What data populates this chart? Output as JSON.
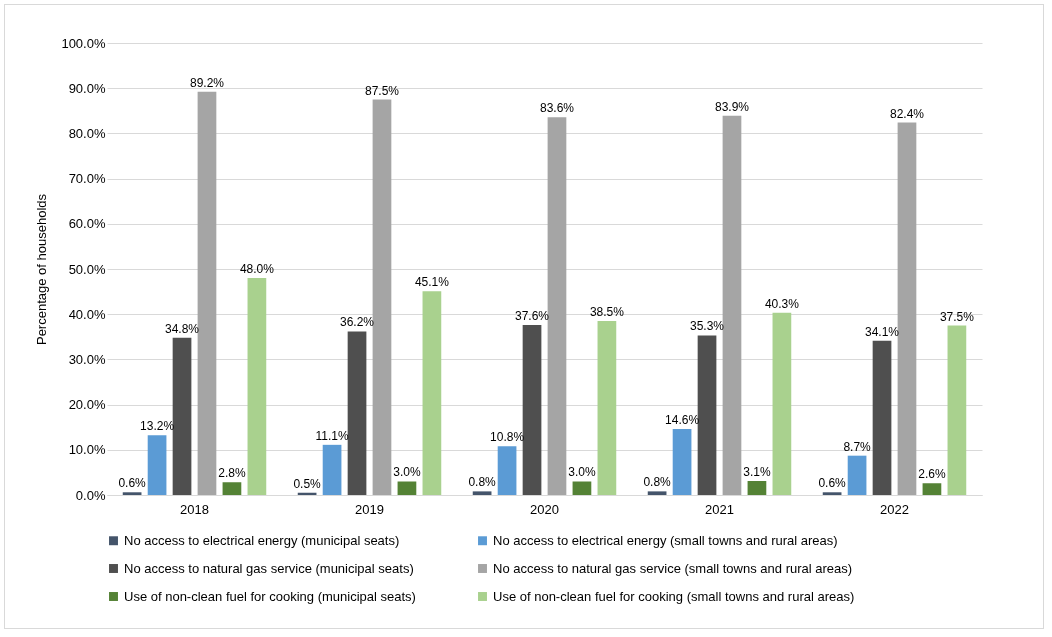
{
  "chart_data": {
    "type": "bar",
    "ylabel": "Percentage of households",
    "categories": [
      "2018",
      "2019",
      "2020",
      "2021",
      "2022"
    ],
    "ylim": [
      0,
      100
    ],
    "yticks": [
      {
        "value": 0,
        "label": "0.0%"
      },
      {
        "value": 10,
        "label": "10.0%"
      },
      {
        "value": 20,
        "label": "20.0%"
      },
      {
        "value": 30,
        "label": "30.0%"
      },
      {
        "value": 40,
        "label": "40.0%"
      },
      {
        "value": 50,
        "label": "50.0%"
      },
      {
        "value": 60,
        "label": "60.0%"
      },
      {
        "value": 70,
        "label": "70.0%"
      },
      {
        "value": 80,
        "label": "80.0%"
      },
      {
        "value": 90,
        "label": "90.0%"
      },
      {
        "value": 100,
        "label": "100.0%"
      }
    ],
    "grid": "y",
    "legend": "bottom",
    "series": [
      {
        "name": "No access to electrical energy (municipal seats)",
        "color": "#44546a",
        "values": [
          0.6,
          0.5,
          0.8,
          0.8,
          0.6
        ],
        "value_labels": [
          "0.6%",
          "0.5%",
          "0.8%",
          "0.8%",
          "0.6%"
        ]
      },
      {
        "name": "No access to electrical energy (small towns and rural areas)",
        "color": "#5b9bd5",
        "values": [
          13.2,
          11.1,
          10.8,
          14.6,
          8.7
        ],
        "value_labels": [
          "13.2%",
          "11.1%",
          "10.8%",
          "14.6%",
          "8.7%"
        ]
      },
      {
        "name": "No access to natural gas service (municipal seats)",
        "color": "#4f4f4f",
        "values": [
          34.8,
          36.2,
          37.6,
          35.3,
          34.1
        ],
        "value_labels": [
          "34.8%",
          "36.2%",
          "37.6%",
          "35.3%",
          "34.1%"
        ]
      },
      {
        "name": "No access to natural gas service (small towns and rural areas)",
        "color": "#a5a5a5",
        "values": [
          89.2,
          87.5,
          83.6,
          83.9,
          82.4
        ],
        "value_labels": [
          "89.2%",
          "87.5%",
          "83.6%",
          "83.9%",
          "82.4%"
        ]
      },
      {
        "name": "Use of non-clean fuel for cooking (municipal seats)",
        "color": "#548235",
        "values": [
          2.8,
          3.0,
          3.0,
          3.1,
          2.6
        ],
        "value_labels": [
          "2.8%",
          "3.0%",
          "3.0%",
          "3.1%",
          "2.6%"
        ]
      },
      {
        "name": "Use of non-clean fuel for cooking (small towns and rural areas)",
        "color": "#a9d18e",
        "values": [
          48.0,
          45.1,
          38.5,
          40.3,
          37.5
        ],
        "value_labels": [
          "48.0%",
          "45.1%",
          "38.5%",
          "40.3%",
          "37.5%"
        ]
      }
    ]
  }
}
